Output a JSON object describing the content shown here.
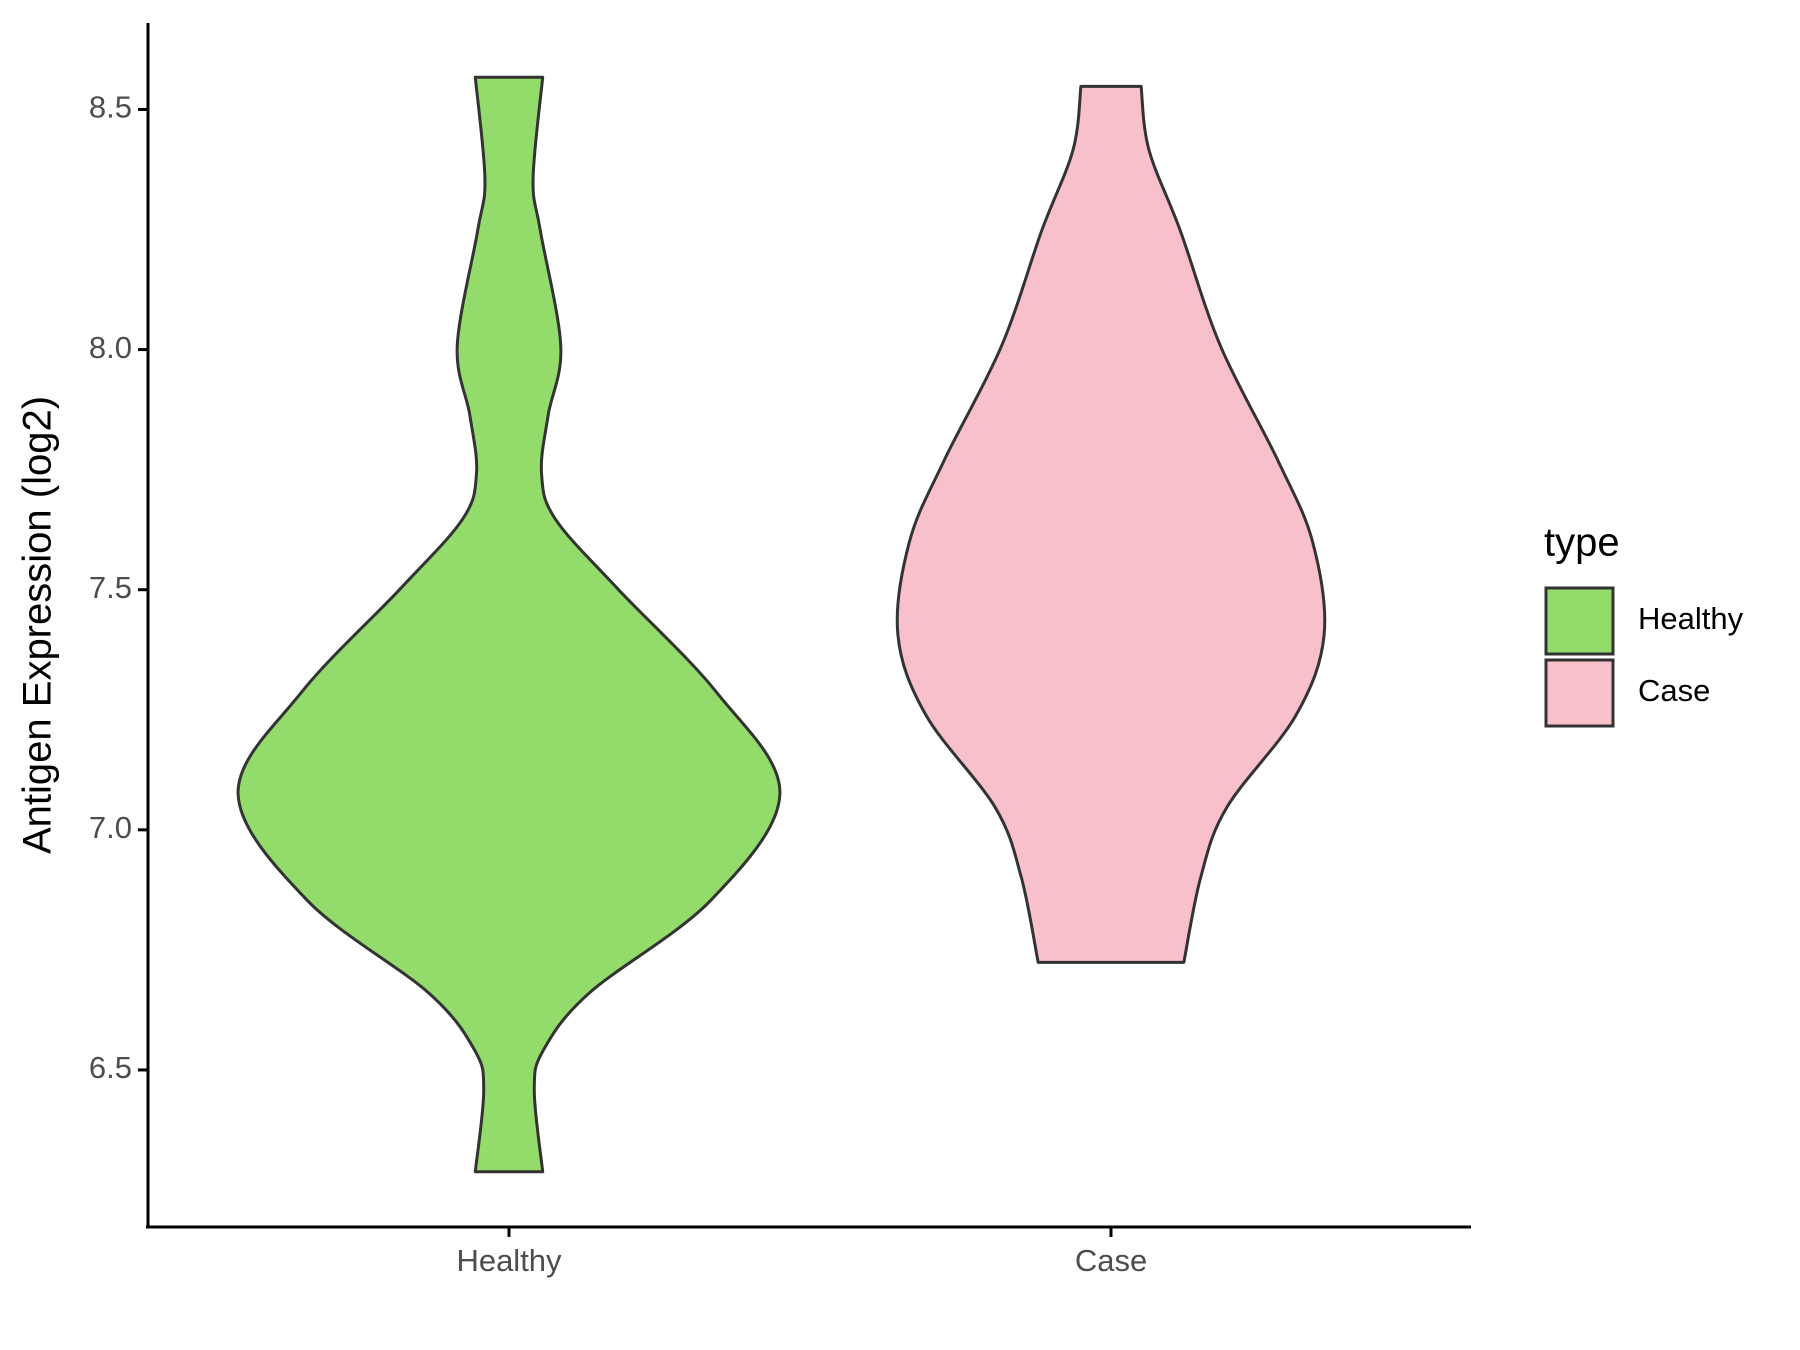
{
  "chart_data": {
    "type": "violin",
    "ylabel": "Antigen Expression (log2)",
    "categories": [
      "Healthy",
      "Case"
    ],
    "legend_title": "type",
    "ylim": [
      6.173,
      8.68
    ],
    "yticks": [
      6.5,
      {
        "value": 7.0,
        "label": "7.0"
      },
      7.5,
      {
        "value": 8.0,
        "label": "8.0"
      },
      8.5
    ],
    "series": [
      {
        "name": "Healthy",
        "color": "#93dc6b",
        "y": [
          8.567,
          8.356,
          8.248,
          8.007,
          7.863,
          7.743,
          7.647,
          7.5,
          7.286,
          7.075,
          6.853,
          6.661,
          6.541,
          6.457,
          6.288
        ],
        "width": [
          0.056,
          0.04,
          0.052,
          0.086,
          0.065,
          0.054,
          0.077,
          0.182,
          0.345,
          0.45,
          0.335,
          0.134,
          0.057,
          0.042,
          0.056
        ]
      },
      {
        "name": "Case",
        "color": "#f8c0cb",
        "y": [
          8.548,
          8.416,
          8.248,
          8.007,
          7.767,
          7.599,
          7.406,
          7.238,
          7.046,
          6.901,
          6.724
        ],
        "width": [
          0.05,
          0.063,
          0.115,
          0.182,
          0.278,
          0.335,
          0.354,
          0.307,
          0.192,
          0.149,
          0.121
        ]
      }
    ]
  }
}
